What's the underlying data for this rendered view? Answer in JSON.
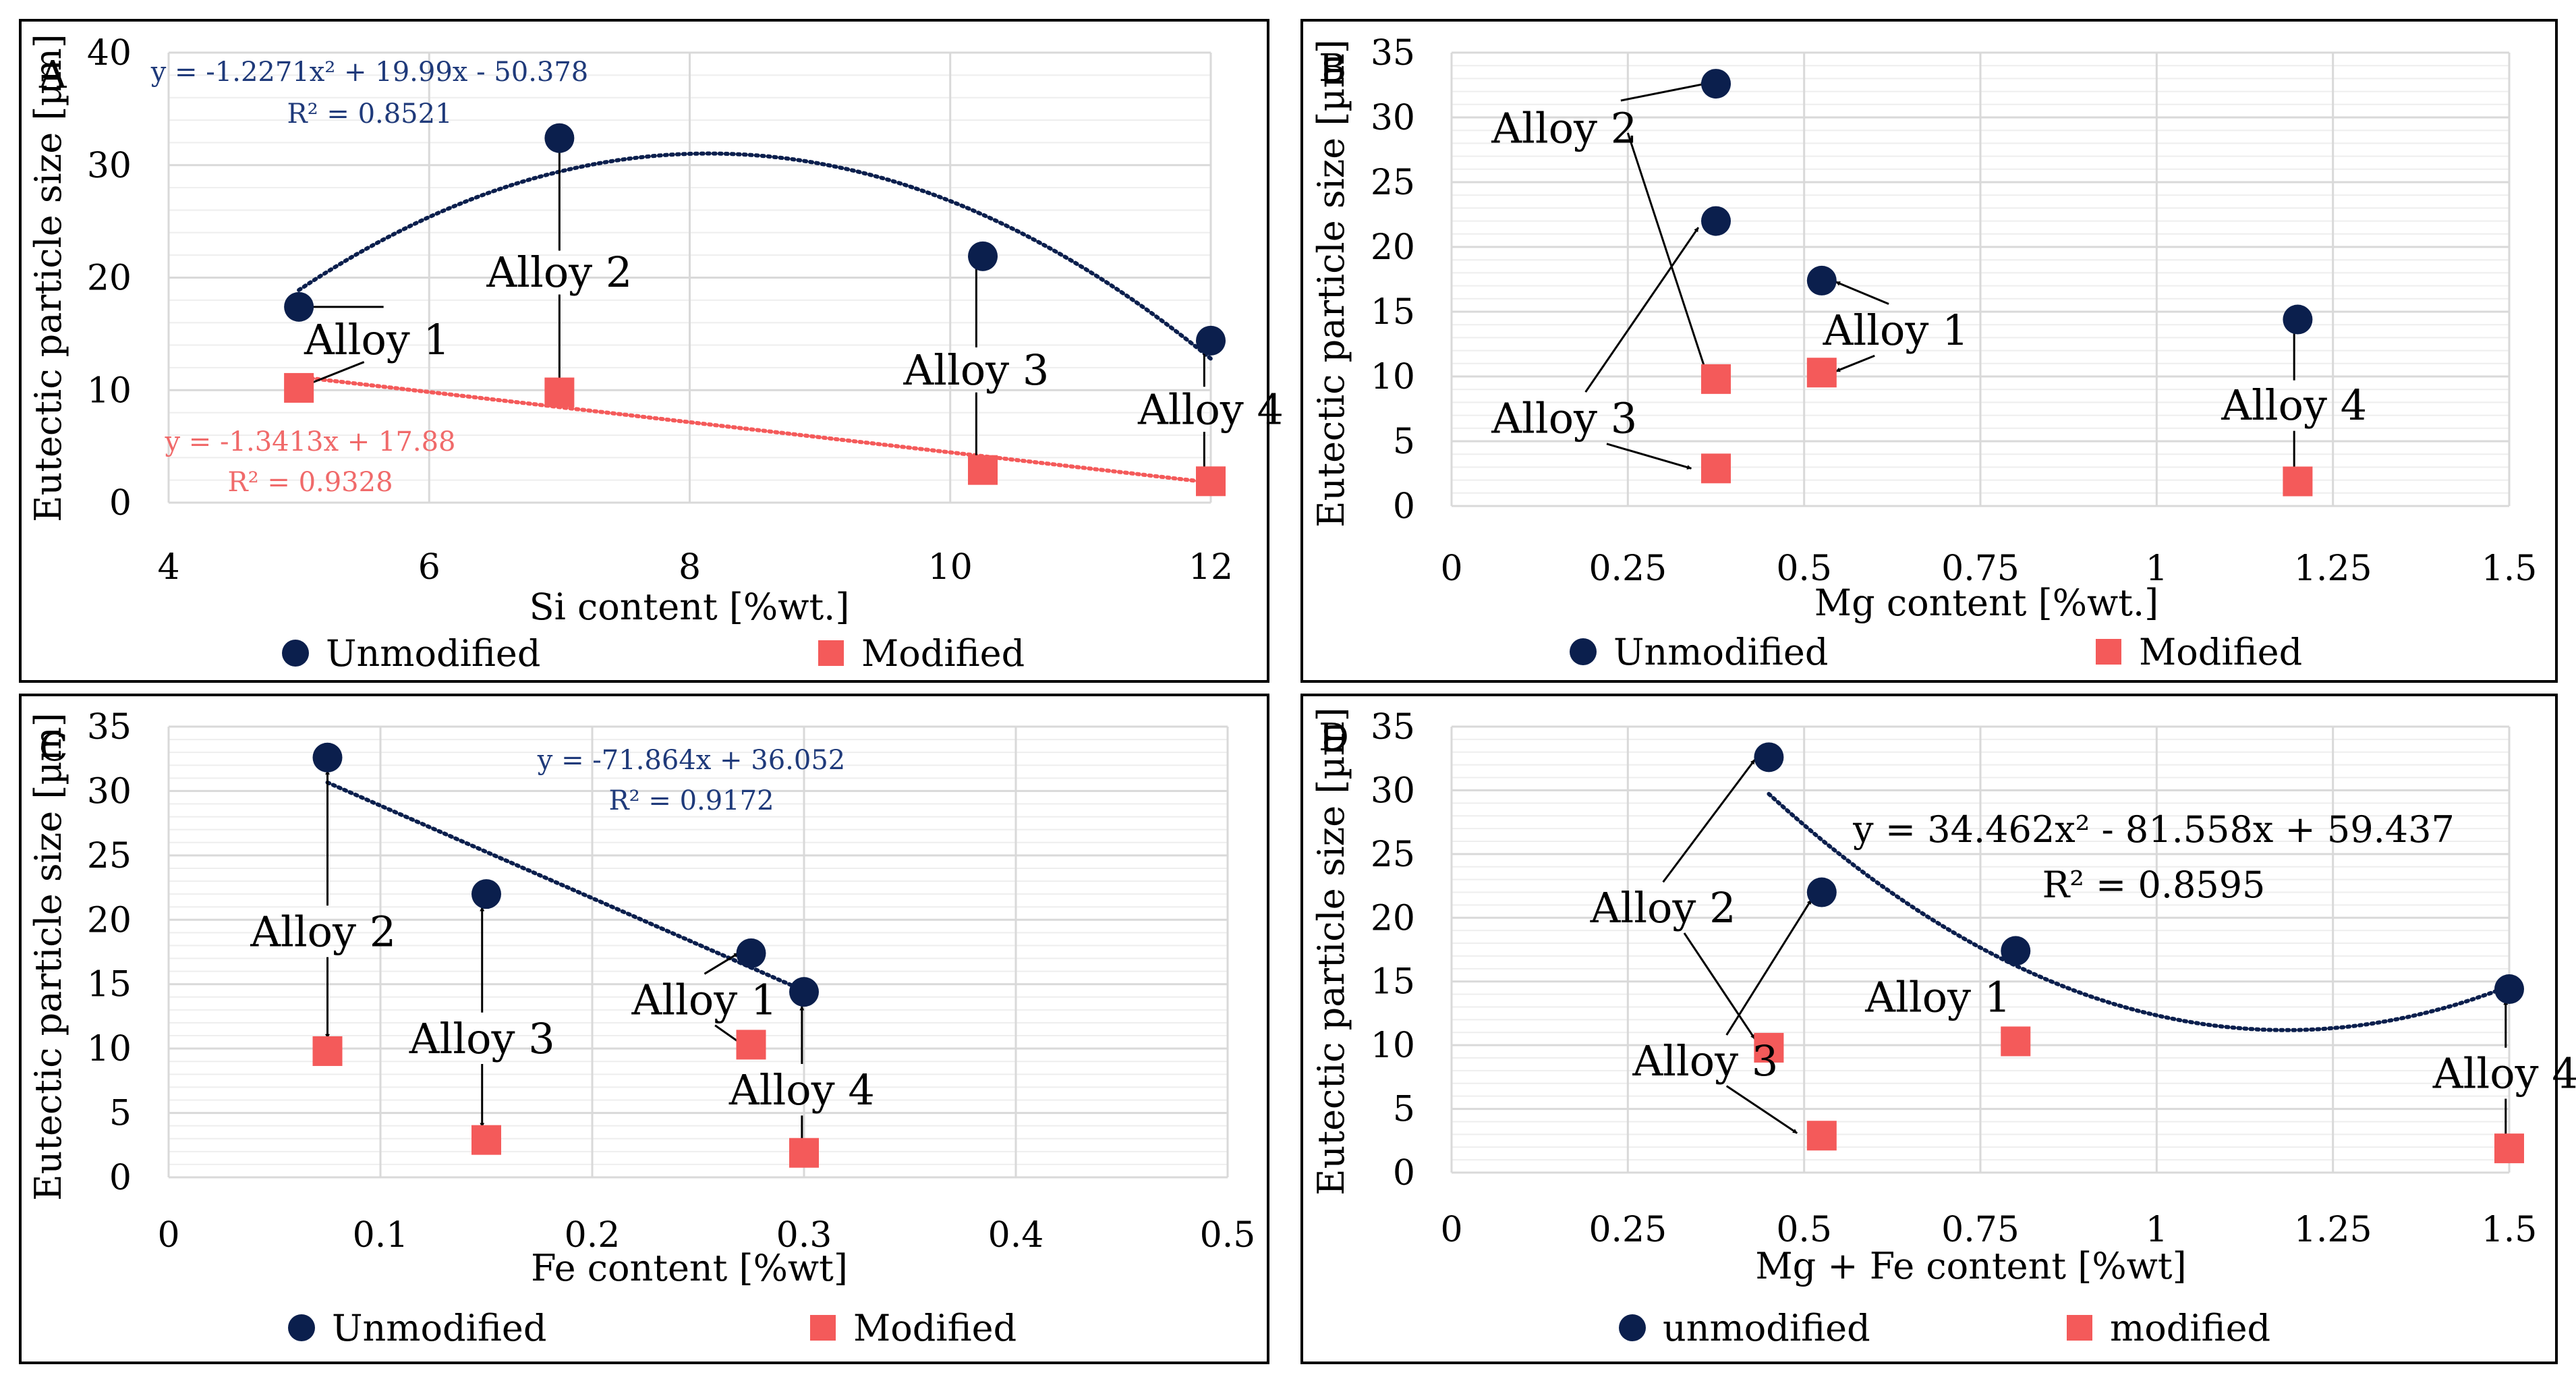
{
  "colors": {
    "unmodified": "#0b1f4d",
    "modified": "#f45a5a",
    "trend_unmodified": "#0b1f4d",
    "trend_modified": "#f45a5a",
    "eq_unmodified": "#1f3a7a",
    "eq_modified": "#f06a6a",
    "grid": "#d9d9d9",
    "grid_minor": "#eeeeee",
    "frame": "#000000"
  },
  "chart_data": [
    {
      "panel": "A",
      "type": "scatter",
      "xlabel": "Si content [%wt.]",
      "ylabel": "Eutectic particle size [µm]",
      "xlim": [
        4,
        12
      ],
      "ylim": [
        0,
        40
      ],
      "xticks": [
        "4",
        "6",
        "8",
        "10",
        "12"
      ],
      "yticks": [
        "0",
        "10",
        "20",
        "30",
        "40"
      ],
      "legend": [
        "Unmodified",
        "Modified"
      ],
      "series": [
        {
          "name": "Unmodified",
          "marker": "circle",
          "points": [
            [
              5,
              17.4
            ],
            [
              7,
              32.4
            ],
            [
              10.25,
              21.9
            ],
            [
              12,
              14.4
            ]
          ]
        },
        {
          "name": "Modified",
          "marker": "square",
          "points": [
            [
              5,
              10.2
            ],
            [
              7,
              9.8
            ],
            [
              10.25,
              2.9
            ],
            [
              12,
              1.9
            ]
          ]
        }
      ],
      "trendlines": [
        {
          "series": "Unmodified",
          "kind": "poly2",
          "coef": [
            -1.2271,
            19.99,
            -50.378
          ],
          "range": [
            5,
            12
          ],
          "equation": "y = -1.2271x² + 19.99x - 50.378",
          "r2": "R² = 0.8521"
        },
        {
          "series": "Modified",
          "kind": "linear",
          "coef": [
            -1.3413,
            17.88
          ],
          "range": [
            5,
            12
          ],
          "equation": "y = -1.3413x + 17.88",
          "r2": "R² = 0.9328"
        }
      ],
      "annotations": [
        {
          "label": "Alloy 1",
          "text_at": [
            5.6,
            14.5
          ],
          "arrows": [
            [
              5.65,
              17.4,
              5,
              17.4
            ],
            [
              5.5,
              12.5,
              5,
              10.2
            ]
          ]
        },
        {
          "label": "Alloy 2",
          "text_at": [
            7,
            20.5
          ],
          "arrows": [
            [
              7,
              22.4,
              7,
              32.4
            ],
            [
              7,
              18.5,
              7,
              9.8
            ]
          ]
        },
        {
          "label": "Alloy 3",
          "text_at": [
            10.2,
            11.8
          ],
          "arrows": [
            [
              10.2,
              13.8,
              10.2,
              21.9
            ],
            [
              10.2,
              9.8,
              10.2,
              2.9
            ]
          ]
        },
        {
          "label": "Alloy 4",
          "text_at": [
            12,
            8.3
          ],
          "arrows": [
            [
              11.95,
              10.3,
              11.95,
              14.4
            ],
            [
              11.95,
              6.3,
              11.95,
              1.9
            ]
          ]
        }
      ]
    },
    {
      "panel": "B",
      "type": "scatter",
      "xlabel": "Mg content [%wt.]",
      "ylabel": "Eutectic particle size [µm]",
      "xlim": [
        0,
        1.5
      ],
      "ylim": [
        0,
        35
      ],
      "xticks": [
        "0",
        "0.25",
        "0.5",
        "0.75",
        "1",
        "1.25",
        "1.5"
      ],
      "yticks": [
        "0",
        "5",
        "10",
        "15",
        "20",
        "25",
        "30",
        "35"
      ],
      "legend": [
        "Unmodified",
        "Modified"
      ],
      "series": [
        {
          "name": "Unmodified",
          "marker": "circle",
          "points": [
            [
              0.375,
              32.6
            ],
            [
              0.375,
              22
            ],
            [
              0.525,
              17.4
            ],
            [
              1.2,
              14.4
            ]
          ]
        },
        {
          "name": "Modified",
          "marker": "square",
          "points": [
            [
              0.375,
              9.8
            ],
            [
              0.375,
              2.9
            ],
            [
              0.525,
              10.3
            ],
            [
              1.2,
              1.9
            ]
          ]
        }
      ],
      "trendlines": [],
      "annotations": [
        {
          "label": "Alloy 2",
          "text_at": [
            0.16,
            29.2
          ],
          "arrows": [
            [
              0.24,
              31.3,
              0.36,
              32.6
            ],
            [
              0.25,
              28.8,
              0.36,
              10.5
            ]
          ]
        },
        {
          "label": "Alloy 3",
          "text_at": [
            0.16,
            6.8
          ],
          "arrows": [
            [
              0.19,
              8.8,
              0.35,
              21.5
            ],
            [
              0.22,
              4.8,
              0.34,
              2.9
            ]
          ]
        },
        {
          "label": "Alloy 1",
          "text_at": [
            0.63,
            13.6
          ],
          "arrows": [
            [
              0.62,
              15.6,
              0.545,
              17.3
            ],
            [
              0.6,
              11.6,
              0.545,
              10.4
            ]
          ]
        },
        {
          "label": "Alloy 4",
          "text_at": [
            1.195,
            7.8
          ],
          "arrows": [
            [
              1.195,
              9.7,
              1.195,
              14.0
            ],
            [
              1.195,
              5.8,
              1.195,
              2.3
            ]
          ]
        }
      ]
    },
    {
      "panel": "C",
      "type": "scatter",
      "xlabel": "Fe content [%wt]",
      "ylabel": "Eutectic particle size [µm]",
      "xlim": [
        0,
        0.5
      ],
      "ylim": [
        0,
        35
      ],
      "xticks": [
        "0",
        "0.1",
        "0.2",
        "0.3",
        "0.4",
        "0.5"
      ],
      "yticks": [
        "0",
        "5",
        "10",
        "15",
        "20",
        "25",
        "30",
        "35"
      ],
      "legend": [
        "Unmodified",
        "Modified"
      ],
      "series": [
        {
          "name": "Unmodified",
          "marker": "circle",
          "points": [
            [
              0.075,
              32.6
            ],
            [
              0.15,
              22
            ],
            [
              0.275,
              17.4
            ],
            [
              0.3,
              14.4
            ]
          ]
        },
        {
          "name": "Modified",
          "marker": "square",
          "points": [
            [
              0.075,
              9.8
            ],
            [
              0.15,
              2.9
            ],
            [
              0.275,
              10.3
            ],
            [
              0.3,
              1.9
            ]
          ]
        }
      ],
      "trendlines": [
        {
          "series": "Unmodified",
          "kind": "linear",
          "coef": [
            -71.864,
            36.052
          ],
          "range": [
            0.075,
            0.3
          ],
          "equation": "y = -71.864x + 36.052",
          "r2": "R² = 0.9172"
        }
      ],
      "annotations": [
        {
          "label": "Alloy 2",
          "text_at": [
            0.073,
            19.1
          ],
          "arrows": [
            [
              0.075,
              21.1,
              0.075,
              31.6
            ],
            [
              0.075,
              17.1,
              0.075,
              10.8
            ]
          ]
        },
        {
          "label": "Alloy 3",
          "text_at": [
            0.148,
            10.8
          ],
          "arrows": [
            [
              0.148,
              12.8,
              0.148,
              21.0
            ],
            [
              0.148,
              8.8,
              0.148,
              3.9
            ]
          ]
        },
        {
          "label": "Alloy 1",
          "text_at": [
            0.253,
            13.8
          ],
          "arrows": [
            [
              0.253,
              15.8,
              0.269,
              17.4
            ],
            [
              0.258,
              11.8,
              0.271,
              10.3
            ]
          ]
        },
        {
          "label": "Alloy 4",
          "text_at": [
            0.299,
            6.8
          ],
          "arrows": [
            [
              0.299,
              8.8,
              0.299,
              13.3
            ],
            [
              0.299,
              4.8,
              0.299,
              2.6
            ]
          ]
        }
      ]
    },
    {
      "panel": "D",
      "type": "scatter",
      "xlabel": "Mg + Fe content [%wt]",
      "ylabel": "Eutectic particle size [µm]",
      "xlim": [
        0,
        1.5
      ],
      "ylim": [
        0,
        35
      ],
      "xticks": [
        "0",
        "0.25",
        "0.5",
        "0.75",
        "1",
        "1.25",
        "1.5"
      ],
      "yticks": [
        "0",
        "5",
        "10",
        "15",
        "20",
        "25",
        "30",
        "35"
      ],
      "legend": [
        "unmodified",
        "modified"
      ],
      "series": [
        {
          "name": "unmodified",
          "marker": "circle",
          "points": [
            [
              0.45,
              32.6
            ],
            [
              0.525,
              22
            ],
            [
              0.8,
              17.4
            ],
            [
              1.5,
              14.4
            ]
          ]
        },
        {
          "name": "modified",
          "marker": "square",
          "points": [
            [
              0.45,
              9.8
            ],
            [
              0.525,
              2.9
            ],
            [
              0.8,
              10.3
            ],
            [
              1.5,
              1.9
            ]
          ]
        }
      ],
      "trendlines": [
        {
          "series": "unmodified",
          "kind": "poly2",
          "coef": [
            34.462,
            -81.558,
            59.437
          ],
          "range": [
            0.45,
            1.5
          ],
          "equation": "y = 34.462x² - 81.558x + 59.437",
          "r2": "R² = 0.8595"
        }
      ],
      "annotations": [
        {
          "label": "Alloy 2",
          "text_at": [
            0.3,
            20.8
          ],
          "arrows": [
            [
              0.3,
              22.8,
              0.43,
              32.4
            ],
            [
              0.33,
              18.8,
              0.43,
              10.5
            ]
          ]
        },
        {
          "label": "Alloy 3",
          "text_at": [
            0.36,
            8.8
          ],
          "arrows": [
            [
              0.39,
              10.8,
              0.51,
              21.4
            ],
            [
              0.39,
              6.8,
              0.49,
              3.1
            ]
          ]
        },
        {
          "label": "Alloy 1",
          "text_at": [
            0.69,
            13.8
          ],
          "arrows": []
        },
        {
          "label": "Alloy 4",
          "text_at": [
            1.495,
            7.8
          ],
          "arrows": [
            [
              1.495,
              9.8,
              1.495,
              13.5
            ],
            [
              1.495,
              5.8,
              1.495,
              2.3
            ]
          ]
        }
      ]
    }
  ]
}
